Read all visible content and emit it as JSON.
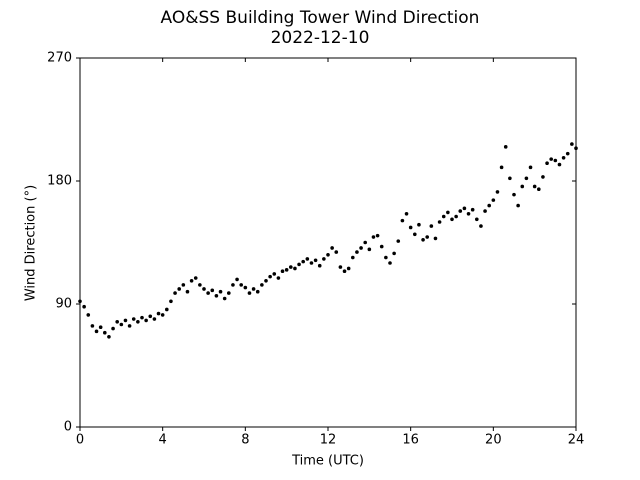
{
  "chart_data": {
    "type": "scatter",
    "title": "AO&SS Building Tower Wind Direction",
    "subtitle": "2022-12-10",
    "x_label": "Time (UTC)",
    "y_label": "Wind Direction (°)",
    "color": "#000000",
    "xlim": [
      0,
      24
    ],
    "xticks": [
      0,
      4,
      8,
      12,
      16,
      20,
      24
    ],
    "ylim": [
      0,
      270
    ],
    "yticks": [
      0,
      90,
      180,
      270
    ],
    "x": [
      0,
      0.2,
      0.4,
      0.6,
      0.8,
      1,
      1.2,
      1.4,
      1.6,
      1.8,
      2,
      2.2,
      2.4,
      2.6,
      2.8,
      3,
      3.2,
      3.4,
      3.6,
      3.8,
      4,
      4.2,
      4.4,
      4.6,
      4.8,
      5,
      5.2,
      5.4,
      5.6,
      5.8,
      6,
      6.2,
      6.4,
      6.6,
      6.8,
      7,
      7.2,
      7.4,
      7.6,
      7.8,
      8,
      8.2,
      8.4,
      8.6,
      8.8,
      9,
      9.2,
      9.4,
      9.6,
      9.8,
      10,
      10.2,
      10.4,
      10.6,
      10.8,
      11,
      11.2,
      11.4,
      11.6,
      11.8,
      12,
      12.2,
      12.4,
      12.6,
      12.8,
      13,
      13.2,
      13.4,
      13.6,
      13.8,
      14,
      14.2,
      14.4,
      14.6,
      14.8,
      15,
      15.2,
      15.4,
      15.6,
      15.8,
      16,
      16.2,
      16.4,
      16.6,
      16.8,
      17,
      17.2,
      17.4,
      17.6,
      17.8,
      18,
      18.2,
      18.4,
      18.6,
      18.8,
      19,
      19.2,
      19.4,
      19.6,
      19.8,
      20,
      20.2,
      20.4,
      20.6,
      20.8,
      21,
      21.2,
      21.4,
      21.6,
      21.8,
      22,
      22.2,
      22.4,
      22.6,
      22.8,
      23,
      23.2,
      23.4,
      23.6,
      23.8,
      24
    ],
    "values": [
      92,
      88,
      82,
      74,
      70,
      73,
      69,
      66,
      72,
      77,
      75,
      78,
      74,
      79,
      77,
      80,
      78,
      81,
      79,
      83,
      82,
      86,
      92,
      98,
      101,
      104,
      99,
      107,
      109,
      104,
      101,
      98,
      100,
      96,
      99,
      94,
      98,
      104,
      108,
      104,
      102,
      98,
      101,
      99,
      104,
      107,
      110,
      112,
      109,
      114,
      115,
      117,
      116,
      119,
      121,
      123,
      120,
      122,
      118,
      123,
      126,
      131,
      128,
      117,
      114,
      116,
      124,
      128,
      131,
      135,
      130,
      139,
      140,
      132,
      124,
      120,
      127,
      136,
      151,
      156,
      146,
      141,
      148,
      137,
      139,
      147,
      138,
      150,
      154,
      157,
      152,
      154,
      158,
      160,
      156,
      159,
      152,
      147,
      158,
      162,
      166,
      172,
      190,
      205,
      182,
      170,
      162,
      176,
      182,
      190,
      176,
      174,
      183,
      193,
      196,
      195,
      192,
      197,
      200,
      207,
      204
    ]
  }
}
